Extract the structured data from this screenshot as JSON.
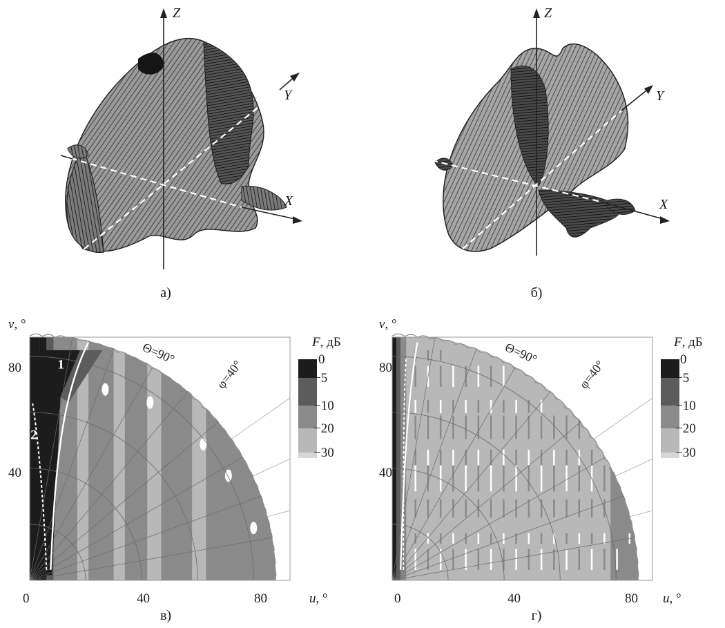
{
  "panels_3d": [
    {
      "caption": "а)",
      "axes": {
        "z": "Z",
        "y": "Y",
        "x": "X"
      }
    },
    {
      "caption": "б)",
      "axes": {
        "z": "Z",
        "y": "Y",
        "x": "X"
      }
    }
  ],
  "chart_data": [
    {
      "type": "heatmap",
      "caption": "в)",
      "xlabel_var": "u",
      "xlabel_unit": ", °",
      "ylabel_var": "v",
      "ylabel_unit": ", °",
      "xticks": [
        "0",
        "40",
        "80"
      ],
      "yticks": [
        "40",
        "80"
      ],
      "xlim": [
        0,
        93
      ],
      "ylim": [
        0,
        93
      ],
      "colorbar": {
        "title_var": "F",
        "title_unit": ", дБ",
        "ticks": [
          "0",
          "−5",
          "−10",
          "−20",
          "−30"
        ],
        "colors": [
          "#1c1c1c",
          "#5c5c5c",
          "#8a8a8a",
          "#b8b8b8",
          "#d6d6d6"
        ]
      },
      "annotations": {
        "theta": "Θ=90°",
        "phi": "φ=40°",
        "curve1": "1",
        "curve2": "2"
      },
      "grid": true
    },
    {
      "type": "heatmap",
      "caption": "г)",
      "xlabel_var": "u",
      "xlabel_unit": ", °",
      "ylabel_var": "v",
      "ylabel_unit": ", °",
      "xticks": [
        "0",
        "40",
        "80"
      ],
      "yticks": [
        "40",
        "80"
      ],
      "xlim": [
        0,
        93
      ],
      "ylim": [
        0,
        93
      ],
      "colorbar": {
        "title_var": "F",
        "title_unit": ", дБ",
        "ticks": [
          "0",
          "−5",
          "−10",
          "−20",
          "−30"
        ],
        "colors": [
          "#1c1c1c",
          "#5c5c5c",
          "#8a8a8a",
          "#b8b8b8",
          "#d6d6d6"
        ]
      },
      "annotations": {
        "theta": "Θ=90°",
        "phi": "φ=40°"
      },
      "grid": true
    }
  ]
}
